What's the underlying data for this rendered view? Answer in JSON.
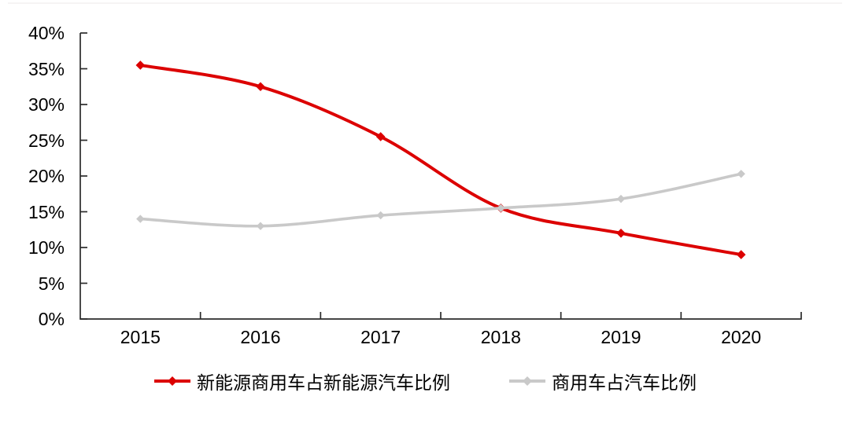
{
  "chart_data": {
    "type": "line",
    "title": "",
    "smooth": true,
    "grid": false,
    "legend_position": "bottom",
    "categories": [
      "2015",
      "2016",
      "2017",
      "2018",
      "2019",
      "2020"
    ],
    "series": [
      {
        "name": "新能源商用车占新能源汽车比例",
        "color": "#dc0000",
        "marker": "diamond",
        "values": [
          35.5,
          32.5,
          25.5,
          15.5,
          12.0,
          9.0
        ]
      },
      {
        "name": "商用车占汽车比例",
        "color": "#c9c9c9",
        "marker": "diamond",
        "values": [
          14.0,
          13.0,
          14.5,
          15.5,
          16.8,
          20.3
        ]
      }
    ],
    "y_axis": {
      "min": 0,
      "max": 40,
      "step": 5,
      "unit": "%",
      "tick_labels": [
        "0%",
        "5%",
        "10%",
        "15%",
        "20%",
        "25%",
        "30%",
        "35%",
        "40%"
      ]
    },
    "axis_color": "#2b2b2b",
    "text_color": "#000000"
  }
}
